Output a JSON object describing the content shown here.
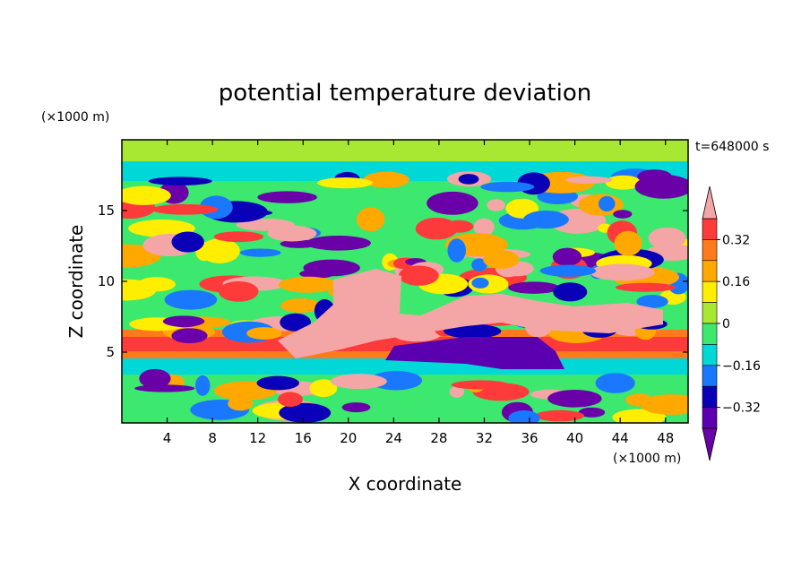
{
  "chart_data": {
    "type": "heatmap",
    "title": "potential temperature deviation",
    "xlabel": "X coordinate",
    "ylabel": "Z coordinate",
    "x_unit": "(×1000 m)",
    "y_unit": "(×1000 m)",
    "time_label": "t=648000 s",
    "xlim": [
      0,
      50
    ],
    "ylim": [
      0,
      20
    ],
    "x_ticks": [
      4,
      8,
      12,
      16,
      20,
      24,
      28,
      32,
      36,
      40,
      44,
      48
    ],
    "y_ticks": [
      5,
      10,
      15
    ],
    "colorbar": {
      "levels": [
        -0.4,
        -0.32,
        -0.24,
        -0.16,
        -0.08,
        0,
        0.08,
        0.16,
        0.24,
        0.32,
        0.4
      ],
      "labels": [
        "0.32",
        "0.16",
        "0",
        "−0.16",
        "−0.32"
      ],
      "label_values": [
        0.32,
        0.16,
        0,
        -0.16,
        -0.32
      ],
      "colors": [
        "#ff3a3a",
        "#ff7a1a",
        "#ffa800",
        "#ffee00",
        "#a8e832",
        "#3ce86e",
        "#00d8d8",
        "#1a78ff",
        "#0a00b8",
        "#5a00b0"
      ],
      "over_color": "#f4a6a6",
      "under_color": "#6a00a8"
    },
    "background_color": "#00e38a"
  }
}
